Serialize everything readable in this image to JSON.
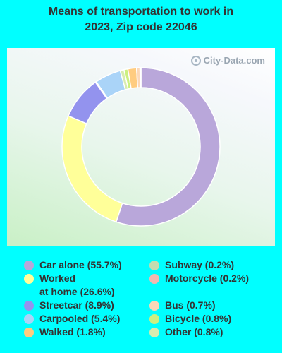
{
  "title_line1": "Means of transportation to work in",
  "title_line2": "2023, Zip code 22046",
  "watermark": "City-Data.com",
  "chart_data": {
    "type": "pie",
    "style": "donut",
    "title": "Means of transportation to work in 2023, Zip code 22046",
    "start_angle_deg": 0,
    "legend_position": "bottom",
    "slices": [
      {
        "name": "Car alone",
        "value": 55.7,
        "color": "#b9a7da",
        "label": "Car alone (55.7%)"
      },
      {
        "name": "Worked at home",
        "value": 26.6,
        "color": "#ffff99",
        "label_line1": "Worked",
        "label_line2": "at home (26.6%)"
      },
      {
        "name": "Streetcar",
        "value": 8.9,
        "color": "#9393ee",
        "label": "Streetcar (8.9%)"
      },
      {
        "name": "Motorcycle",
        "value": 0.2,
        "color": "#f4b8b0",
        "label": "Motorcycle (0.2%)"
      },
      {
        "name": "Carpooled",
        "value": 5.4,
        "color": "#aad4f8",
        "label": "Carpooled (5.4%)"
      },
      {
        "name": "Other",
        "value": 0.8,
        "color": "#d8ecb0",
        "label": "Other (0.8%)"
      },
      {
        "name": "Bicycle",
        "value": 0.8,
        "color": "#ccf080",
        "label": "Bicycle (0.8%)"
      },
      {
        "name": "Walked",
        "value": 1.8,
        "color": "#ffcc80",
        "label": "Walked (1.8%)"
      },
      {
        "name": "Bus",
        "value": 0.7,
        "color": "#fcd8b8",
        "label": "Bus (0.7%)"
      },
      {
        "name": "Subway",
        "value": 0.2,
        "color": "#c4dcb0",
        "label": "Subway (0.2%)"
      }
    ],
    "legend_left": [
      "Car alone",
      "Worked at home",
      "Streetcar",
      "Carpooled",
      "Walked"
    ],
    "legend_right": [
      "Subway",
      "Motorcycle",
      "Bus",
      "Bicycle",
      "Other"
    ]
  }
}
